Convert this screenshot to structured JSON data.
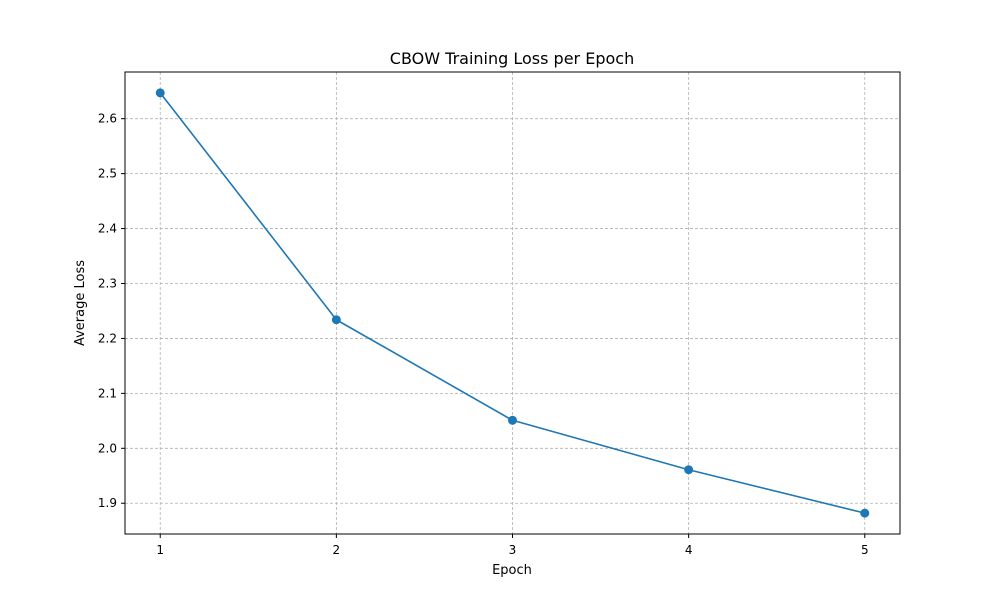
{
  "chart_data": {
    "type": "line",
    "title": "CBOW Training Loss per Epoch",
    "xlabel": "Epoch",
    "ylabel": "Average Loss",
    "x": [
      1,
      2,
      3,
      4,
      5
    ],
    "series": [
      {
        "values": [
          2.647,
          2.234,
          2.051,
          1.961,
          1.882
        ],
        "color": "#1f77b4",
        "marker": "circle"
      }
    ],
    "xticks": [
      "1",
      "2",
      "3",
      "4",
      "5"
    ],
    "yticks": [
      "1.9",
      "2.0",
      "2.1",
      "2.2",
      "2.3",
      "2.4",
      "2.5",
      "2.6"
    ],
    "xlim": [
      0.8,
      5.2
    ],
    "ylim": [
      1.844,
      2.685
    ],
    "grid": true,
    "legend": false
  }
}
